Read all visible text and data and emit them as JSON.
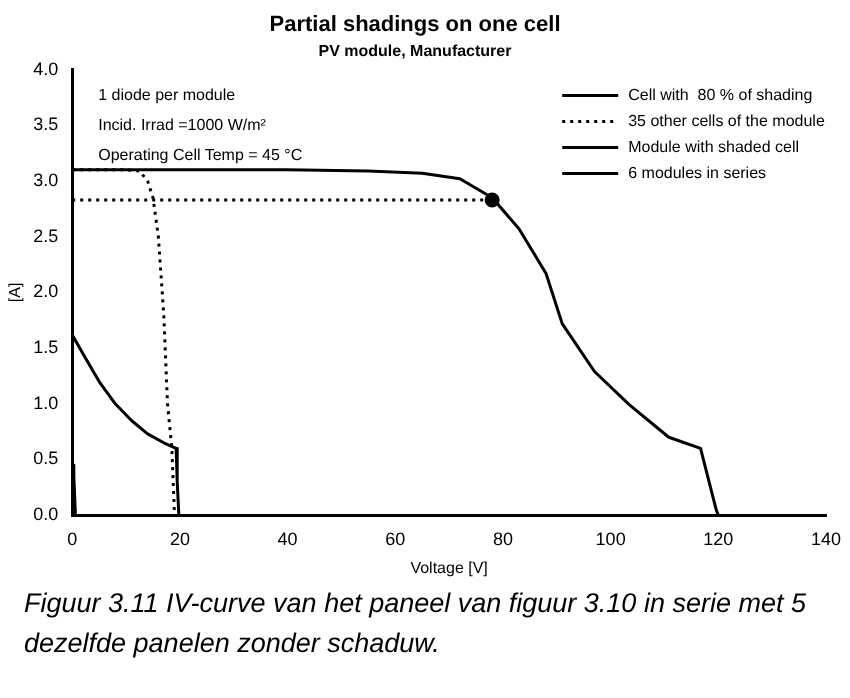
{
  "chart_data": {
    "type": "line",
    "title": "Partial shadings on one cell",
    "subtitle": "PV module, Manufacturer",
    "xlabel": "Voltage [V]",
    "ylabel": "[A]",
    "xlim": [
      0,
      140
    ],
    "xticks": [
      0,
      20,
      40,
      60,
      80,
      100,
      120,
      140
    ],
    "ylim": [
      0,
      4
    ],
    "yticks": [
      {
        "value": 0,
        "label": "0.0"
      },
      {
        "value": 0.5,
        "label": "0.5"
      },
      {
        "value": 1,
        "label": "1.0"
      },
      {
        "value": 1.5,
        "label": "1.5"
      },
      {
        "value": 2,
        "label": "2.0"
      },
      {
        "value": 2.5,
        "label": "2.5"
      },
      {
        "value": 3,
        "label": "3.0"
      },
      {
        "value": 3.5,
        "label": "3.5"
      },
      {
        "value": 4,
        "label": "4.0"
      }
    ],
    "grid": false,
    "legend": "top right",
    "marker": "none",
    "series": [
      {
        "name": "Cell with  80 % of shading",
        "color": "#000000",
        "line_style": "solid",
        "x": [
          0,
          0.3,
          0.6
        ],
        "values": [
          0.45,
          0.35,
          0
        ]
      },
      {
        "name": "35 other cells of the module",
        "color": "#000000",
        "line_style": "dotted",
        "x": [
          0,
          10,
          12.5,
          14,
          15,
          16,
          17,
          17.7,
          18.5,
          19
        ],
        "values": [
          3.1,
          3.1,
          3.09,
          3.0,
          2.85,
          2.5,
          1.8,
          1.0,
          0.6,
          0
        ]
      },
      {
        "name": "Module with shaded cell",
        "color": "#000000",
        "line_style": "solid",
        "x": [
          0,
          2,
          5,
          8,
          11,
          14,
          17,
          19.3,
          19.5,
          19.8
        ],
        "values": [
          1.62,
          1.45,
          1.2,
          1.0,
          0.85,
          0.73,
          0.65,
          0.6,
          0.3,
          0
        ]
      },
      {
        "name": "6 modules in series",
        "color": "#000000",
        "line_style": "solid",
        "x": [
          0,
          20,
          40,
          55,
          65,
          72,
          78,
          83,
          88,
          91,
          97,
          103.5,
          110.8,
          116.7,
          119.6,
          120
        ],
        "values": [
          3.1,
          3.1,
          3.1,
          3.09,
          3.07,
          3.02,
          2.85,
          2.57,
          2.17,
          1.72,
          1.29,
          0.99,
          0.7,
          0.6,
          0.05,
          0
        ]
      },
      {
        "color": "#000000",
        "line_style": "dotted",
        "x": [
          0,
          78
        ],
        "values": [
          2.83,
          2.83
        ]
      },
      {
        "type": "scatter",
        "color": "#000000",
        "marker": "circle",
        "x": [
          78
        ],
        "values": [
          2.83
        ]
      }
    ],
    "annotations": [
      "1 diode per module",
      "Incid. Irrad =1000 W/m²",
      "Operating Cell Temp = 45 °C",
      "Figuur 3.11 IV-curve van het paneel van figuur 3.10 in serie met 5 dezelfde panelen zonder schaduw."
    ]
  }
}
